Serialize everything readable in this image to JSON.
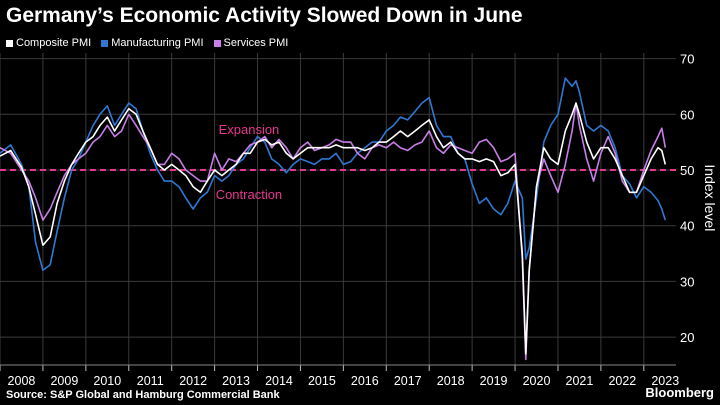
{
  "title": "Germany’s Economic Activity Slowed Down in June",
  "source": "Source: S&P Global and Hamburg Commercial Bank",
  "brand": "Bloomberg",
  "colors": {
    "composite": "#ffffff",
    "manufacturing": "#2f78d2",
    "services": "#c77ee6",
    "threshold": "#e6378f",
    "grid": "#3a3a3a"
  },
  "chart_data": {
    "type": "line",
    "title": "Germany’s Economic Activity Slowed Down in June",
    "ylabel": "Index level",
    "ylim": [
      15,
      71
    ],
    "y_ticks": [
      20,
      30,
      40,
      50,
      60,
      70
    ],
    "x_ticks": [
      2008,
      2009,
      2010,
      2011,
      2012,
      2013,
      2014,
      2015,
      2016,
      2017,
      2018,
      2019,
      2020,
      2021,
      2022,
      2023
    ],
    "xlim": [
      2008.0,
      2023.75
    ],
    "grid": true,
    "legend": "top-left",
    "threshold": {
      "value": 50,
      "style": "dashed"
    },
    "annotations": [
      {
        "text": "Expansion",
        "x": 2013.8,
        "y": 56.5
      },
      {
        "text": "Contraction",
        "x": 2013.8,
        "y": 44.8
      }
    ],
    "series": [
      {
        "name": "Composite PMI",
        "color": "#ffffff",
        "points": [
          [
            2008.0,
            52.5
          ],
          [
            2008.25,
            53.5
          ],
          [
            2008.5,
            50.5
          ],
          [
            2008.67,
            47
          ],
          [
            2008.83,
            42
          ],
          [
            2009.0,
            36.5
          ],
          [
            2009.17,
            38
          ],
          [
            2009.33,
            44
          ],
          [
            2009.5,
            48
          ],
          [
            2009.67,
            51
          ],
          [
            2009.83,
            53
          ],
          [
            2010.0,
            55
          ],
          [
            2010.17,
            56
          ],
          [
            2010.33,
            58
          ],
          [
            2010.5,
            59.5
          ],
          [
            2010.67,
            57
          ],
          [
            2010.83,
            59
          ],
          [
            2011.0,
            61
          ],
          [
            2011.17,
            60
          ],
          [
            2011.33,
            57
          ],
          [
            2011.5,
            54
          ],
          [
            2011.67,
            51
          ],
          [
            2011.83,
            50
          ],
          [
            2012.0,
            51
          ],
          [
            2012.17,
            50
          ],
          [
            2012.33,
            49
          ],
          [
            2012.5,
            47
          ],
          [
            2012.67,
            46
          ],
          [
            2012.83,
            48
          ],
          [
            2013.0,
            50
          ],
          [
            2013.17,
            49
          ],
          [
            2013.33,
            50
          ],
          [
            2013.5,
            51
          ],
          [
            2013.67,
            53
          ],
          [
            2013.83,
            53
          ],
          [
            2014.0,
            55
          ],
          [
            2014.17,
            55.5
          ],
          [
            2014.33,
            54.5
          ],
          [
            2014.5,
            55
          ],
          [
            2014.67,
            53
          ],
          [
            2014.83,
            52
          ],
          [
            2015.0,
            53
          ],
          [
            2015.17,
            54
          ],
          [
            2015.33,
            54
          ],
          [
            2015.5,
            54
          ],
          [
            2015.67,
            54
          ],
          [
            2015.83,
            54.5
          ],
          [
            2016.0,
            54
          ],
          [
            2016.17,
            54
          ],
          [
            2016.33,
            54
          ],
          [
            2016.5,
            53.5
          ],
          [
            2016.67,
            54
          ],
          [
            2016.83,
            55
          ],
          [
            2017.0,
            55
          ],
          [
            2017.17,
            56
          ],
          [
            2017.33,
            57
          ],
          [
            2017.5,
            56
          ],
          [
            2017.67,
            57
          ],
          [
            2017.83,
            58
          ],
          [
            2018.0,
            59
          ],
          [
            2018.17,
            56
          ],
          [
            2018.33,
            54
          ],
          [
            2018.5,
            55
          ],
          [
            2018.67,
            53
          ],
          [
            2018.83,
            52
          ],
          [
            2019.0,
            52
          ],
          [
            2019.17,
            51.5
          ],
          [
            2019.33,
            52
          ],
          [
            2019.5,
            51.5
          ],
          [
            2019.67,
            49
          ],
          [
            2019.83,
            49.5
          ],
          [
            2020.0,
            51
          ],
          [
            2020.17,
            35
          ],
          [
            2020.25,
            17
          ],
          [
            2020.33,
            32
          ],
          [
            2020.5,
            47
          ],
          [
            2020.67,
            54
          ],
          [
            2020.83,
            52
          ],
          [
            2021.0,
            51
          ],
          [
            2021.17,
            57
          ],
          [
            2021.33,
            60
          ],
          [
            2021.42,
            62
          ],
          [
            2021.5,
            60
          ],
          [
            2021.67,
            55
          ],
          [
            2021.83,
            52
          ],
          [
            2022.0,
            54
          ],
          [
            2022.17,
            54
          ],
          [
            2022.33,
            52
          ],
          [
            2022.5,
            49
          ],
          [
            2022.67,
            46
          ],
          [
            2022.83,
            46
          ],
          [
            2023.0,
            49
          ],
          [
            2023.17,
            52
          ],
          [
            2023.33,
            54
          ],
          [
            2023.42,
            53.5
          ],
          [
            2023.5,
            51
          ]
        ]
      },
      {
        "name": "Manufacturing PMI",
        "color": "#2f78d2",
        "points": [
          [
            2008.0,
            53
          ],
          [
            2008.25,
            54.5
          ],
          [
            2008.5,
            51
          ],
          [
            2008.67,
            47
          ],
          [
            2008.83,
            37
          ],
          [
            2009.0,
            32
          ],
          [
            2009.17,
            33
          ],
          [
            2009.33,
            39
          ],
          [
            2009.5,
            45
          ],
          [
            2009.67,
            50
          ],
          [
            2009.83,
            52
          ],
          [
            2010.0,
            55
          ],
          [
            2010.17,
            58
          ],
          [
            2010.33,
            60
          ],
          [
            2010.5,
            61.5
          ],
          [
            2010.67,
            58
          ],
          [
            2010.83,
            60
          ],
          [
            2011.0,
            62
          ],
          [
            2011.17,
            61
          ],
          [
            2011.33,
            57
          ],
          [
            2011.5,
            53
          ],
          [
            2011.67,
            50
          ],
          [
            2011.83,
            48
          ],
          [
            2012.0,
            48
          ],
          [
            2012.17,
            47
          ],
          [
            2012.33,
            45
          ],
          [
            2012.5,
            43
          ],
          [
            2012.67,
            45
          ],
          [
            2012.83,
            46
          ],
          [
            2013.0,
            49
          ],
          [
            2013.17,
            48
          ],
          [
            2013.33,
            49
          ],
          [
            2013.5,
            51
          ],
          [
            2013.67,
            52
          ],
          [
            2013.83,
            54
          ],
          [
            2014.0,
            56
          ],
          [
            2014.17,
            55
          ],
          [
            2014.33,
            52
          ],
          [
            2014.5,
            51
          ],
          [
            2014.67,
            49.5
          ],
          [
            2014.83,
            51
          ],
          [
            2015.0,
            52
          ],
          [
            2015.17,
            51.5
          ],
          [
            2015.33,
            51
          ],
          [
            2015.5,
            52
          ],
          [
            2015.67,
            52
          ],
          [
            2015.83,
            53
          ],
          [
            2016.0,
            51
          ],
          [
            2016.17,
            51.5
          ],
          [
            2016.33,
            53
          ],
          [
            2016.5,
            54
          ],
          [
            2016.67,
            55
          ],
          [
            2016.83,
            55
          ],
          [
            2017.0,
            57
          ],
          [
            2017.17,
            58
          ],
          [
            2017.33,
            59.5
          ],
          [
            2017.5,
            59
          ],
          [
            2017.67,
            60.5
          ],
          [
            2017.83,
            62
          ],
          [
            2018.0,
            63
          ],
          [
            2018.17,
            58
          ],
          [
            2018.33,
            56
          ],
          [
            2018.5,
            56
          ],
          [
            2018.67,
            53
          ],
          [
            2018.83,
            52
          ],
          [
            2019.0,
            47.5
          ],
          [
            2019.17,
            44
          ],
          [
            2019.33,
            45
          ],
          [
            2019.5,
            43
          ],
          [
            2019.67,
            42
          ],
          [
            2019.83,
            44
          ],
          [
            2020.0,
            48
          ],
          [
            2020.17,
            45
          ],
          [
            2020.25,
            34
          ],
          [
            2020.33,
            36
          ],
          [
            2020.5,
            45
          ],
          [
            2020.67,
            55
          ],
          [
            2020.83,
            58
          ],
          [
            2021.0,
            60
          ],
          [
            2021.17,
            66.5
          ],
          [
            2021.33,
            65
          ],
          [
            2021.42,
            66
          ],
          [
            2021.5,
            64
          ],
          [
            2021.67,
            58
          ],
          [
            2021.83,
            57
          ],
          [
            2022.0,
            58
          ],
          [
            2022.17,
            57
          ],
          [
            2022.33,
            54
          ],
          [
            2022.5,
            49
          ],
          [
            2022.67,
            47.5
          ],
          [
            2022.83,
            45
          ],
          [
            2023.0,
            47
          ],
          [
            2023.17,
            46
          ],
          [
            2023.33,
            44.5
          ],
          [
            2023.42,
            43
          ],
          [
            2023.5,
            41
          ]
        ]
      },
      {
        "name": "Services PMI",
        "color": "#c77ee6",
        "points": [
          [
            2008.0,
            54
          ],
          [
            2008.25,
            53
          ],
          [
            2008.5,
            50
          ],
          [
            2008.67,
            48
          ],
          [
            2008.83,
            45
          ],
          [
            2009.0,
            41
          ],
          [
            2009.17,
            43
          ],
          [
            2009.33,
            46
          ],
          [
            2009.5,
            49
          ],
          [
            2009.67,
            51
          ],
          [
            2009.83,
            52
          ],
          [
            2010.0,
            53
          ],
          [
            2010.17,
            55
          ],
          [
            2010.33,
            56
          ],
          [
            2010.5,
            58
          ],
          [
            2010.67,
            56
          ],
          [
            2010.83,
            57
          ],
          [
            2011.0,
            60
          ],
          [
            2011.17,
            58
          ],
          [
            2011.33,
            56
          ],
          [
            2011.5,
            54
          ],
          [
            2011.67,
            51
          ],
          [
            2011.83,
            51
          ],
          [
            2012.0,
            53
          ],
          [
            2012.17,
            52
          ],
          [
            2012.33,
            50
          ],
          [
            2012.5,
            49
          ],
          [
            2012.67,
            48
          ],
          [
            2012.83,
            48
          ],
          [
            2013.0,
            53
          ],
          [
            2013.17,
            50
          ],
          [
            2013.33,
            52
          ],
          [
            2013.5,
            51.5
          ],
          [
            2013.67,
            53
          ],
          [
            2013.83,
            54.5
          ],
          [
            2014.0,
            55
          ],
          [
            2014.17,
            56
          ],
          [
            2014.33,
            54
          ],
          [
            2014.5,
            55.5
          ],
          [
            2014.67,
            54
          ],
          [
            2014.83,
            52
          ],
          [
            2015.0,
            54
          ],
          [
            2015.17,
            55
          ],
          [
            2015.33,
            53.5
          ],
          [
            2015.5,
            54
          ],
          [
            2015.67,
            54.5
          ],
          [
            2015.83,
            55.5
          ],
          [
            2016.0,
            55
          ],
          [
            2016.17,
            55
          ],
          [
            2016.33,
            53
          ],
          [
            2016.5,
            52
          ],
          [
            2016.67,
            54
          ],
          [
            2016.83,
            54.5
          ],
          [
            2017.0,
            54
          ],
          [
            2017.17,
            55
          ],
          [
            2017.33,
            54
          ],
          [
            2017.5,
            53.5
          ],
          [
            2017.67,
            54.5
          ],
          [
            2017.83,
            55
          ],
          [
            2018.0,
            57
          ],
          [
            2018.17,
            54
          ],
          [
            2018.33,
            53
          ],
          [
            2018.5,
            54.5
          ],
          [
            2018.67,
            54
          ],
          [
            2018.83,
            53.5
          ],
          [
            2019.0,
            53
          ],
          [
            2019.17,
            55
          ],
          [
            2019.33,
            55.5
          ],
          [
            2019.5,
            54
          ],
          [
            2019.67,
            51.5
          ],
          [
            2019.83,
            52
          ],
          [
            2020.0,
            53
          ],
          [
            2020.17,
            34
          ],
          [
            2020.25,
            16
          ],
          [
            2020.33,
            32
          ],
          [
            2020.5,
            47
          ],
          [
            2020.67,
            52
          ],
          [
            2020.83,
            49
          ],
          [
            2021.0,
            46
          ],
          [
            2021.17,
            51
          ],
          [
            2021.33,
            57
          ],
          [
            2021.42,
            62
          ],
          [
            2021.5,
            58
          ],
          [
            2021.67,
            52
          ],
          [
            2021.83,
            48
          ],
          [
            2022.0,
            53
          ],
          [
            2022.17,
            56
          ],
          [
            2022.33,
            53
          ],
          [
            2022.5,
            48
          ],
          [
            2022.67,
            46
          ],
          [
            2022.83,
            46
          ],
          [
            2023.0,
            50
          ],
          [
            2023.17,
            53.5
          ],
          [
            2023.33,
            56
          ],
          [
            2023.42,
            57.5
          ],
          [
            2023.5,
            54
          ]
        ]
      }
    ]
  }
}
